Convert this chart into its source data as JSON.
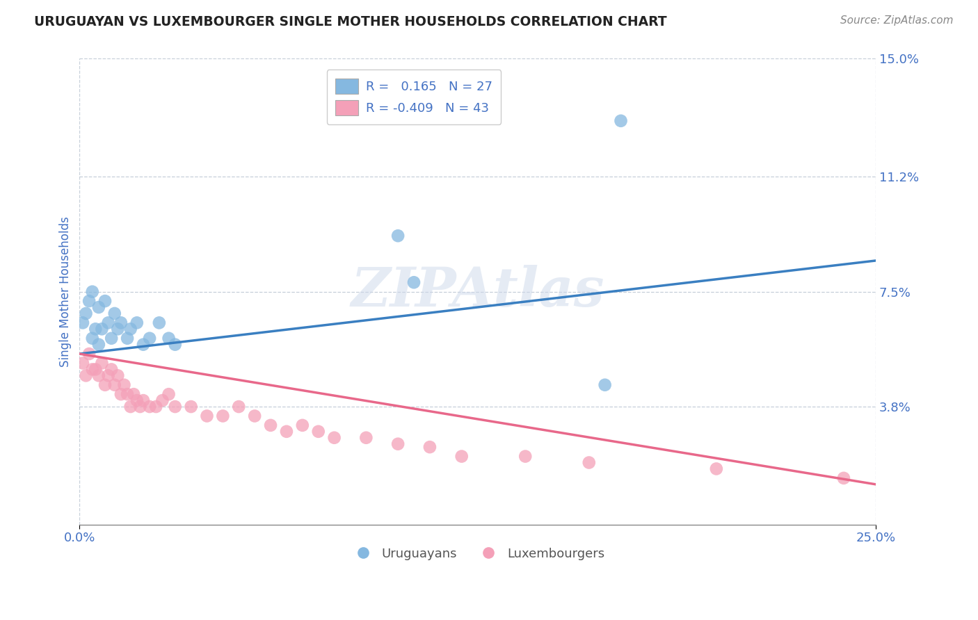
{
  "title": "URUGUAYAN VS LUXEMBOURGER SINGLE MOTHER HOUSEHOLDS CORRELATION CHART",
  "source": "Source: ZipAtlas.com",
  "ylabel": "Single Mother Households",
  "watermark": "ZIPAtlas",
  "xlim": [
    0.0,
    0.25
  ],
  "ylim": [
    0.0,
    0.15
  ],
  "xticks": [
    0.0,
    0.25
  ],
  "xtick_labels": [
    "0.0%",
    "25.0%"
  ],
  "yticks": [
    0.038,
    0.075,
    0.112,
    0.15
  ],
  "ytick_labels": [
    "3.8%",
    "7.5%",
    "11.2%",
    "15.0%"
  ],
  "grid_color": "#b8c4d0",
  "background_color": "#ffffff",
  "uruguayan_color": "#85b8e0",
  "luxembourger_color": "#f4a0b8",
  "uruguayan_line_color": "#3a7fc1",
  "luxembourger_line_color": "#e8688a",
  "title_color": "#222222",
  "tick_color": "#4472c4",
  "R_uruguayan": 0.165,
  "N_uruguayan": 27,
  "R_luxembourger": -0.409,
  "N_luxembourger": 43,
  "uruguayan_scatter_x": [
    0.001,
    0.002,
    0.003,
    0.004,
    0.004,
    0.005,
    0.006,
    0.006,
    0.007,
    0.008,
    0.009,
    0.01,
    0.011,
    0.012,
    0.013,
    0.015,
    0.016,
    0.018,
    0.02,
    0.022,
    0.025,
    0.028,
    0.03,
    0.1,
    0.105,
    0.165,
    0.17
  ],
  "uruguayan_scatter_y": [
    0.065,
    0.068,
    0.072,
    0.06,
    0.075,
    0.063,
    0.058,
    0.07,
    0.063,
    0.072,
    0.065,
    0.06,
    0.068,
    0.063,
    0.065,
    0.06,
    0.063,
    0.065,
    0.058,
    0.06,
    0.065,
    0.06,
    0.058,
    0.093,
    0.078,
    0.045,
    0.13
  ],
  "luxembourger_scatter_x": [
    0.001,
    0.002,
    0.003,
    0.004,
    0.005,
    0.006,
    0.007,
    0.008,
    0.009,
    0.01,
    0.011,
    0.012,
    0.013,
    0.014,
    0.015,
    0.016,
    0.017,
    0.018,
    0.019,
    0.02,
    0.022,
    0.024,
    0.026,
    0.028,
    0.03,
    0.035,
    0.04,
    0.045,
    0.05,
    0.055,
    0.06,
    0.065,
    0.07,
    0.075,
    0.08,
    0.09,
    0.1,
    0.11,
    0.12,
    0.14,
    0.16,
    0.2,
    0.24
  ],
  "luxembourger_scatter_y": [
    0.052,
    0.048,
    0.055,
    0.05,
    0.05,
    0.048,
    0.052,
    0.045,
    0.048,
    0.05,
    0.045,
    0.048,
    0.042,
    0.045,
    0.042,
    0.038,
    0.042,
    0.04,
    0.038,
    0.04,
    0.038,
    0.038,
    0.04,
    0.042,
    0.038,
    0.038,
    0.035,
    0.035,
    0.038,
    0.035,
    0.032,
    0.03,
    0.032,
    0.03,
    0.028,
    0.028,
    0.026,
    0.025,
    0.022,
    0.022,
    0.02,
    0.018,
    0.015
  ],
  "legend_uruguayan": "R =   0.165   N = 27",
  "legend_luxembourger": "R = -0.409   N = 43",
  "legend_label_uruguayan": "Uruguayans",
  "legend_label_luxembourger": "Luxembourgers"
}
